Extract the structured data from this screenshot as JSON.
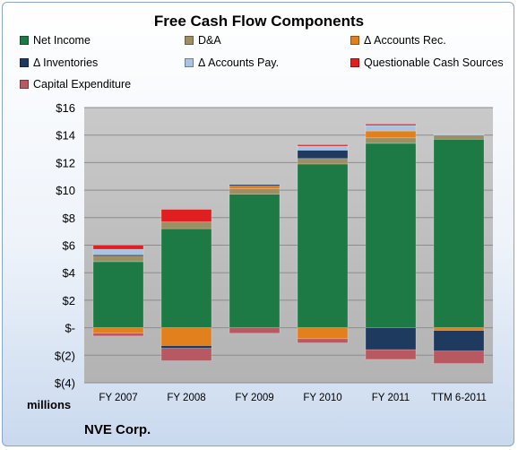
{
  "chart_data": {
    "type": "bar",
    "stacked": true,
    "title": "Free Cash Flow Components",
    "categories": [
      "FY 2007",
      "FY 2008",
      "FY 2009",
      "FY 2010",
      "FY 2011",
      "TTM 6-2011"
    ],
    "y_tick_labels": [
      "$(4)",
      "$(2)",
      "$-",
      "$2",
      "$4",
      "$6",
      "$8",
      "$10",
      "$12",
      "$14",
      "$16"
    ],
    "ylim": [
      -4,
      16
    ],
    "ylabel": "millions",
    "grid": true,
    "legend_position": "top",
    "series": [
      {
        "name": "Net Income",
        "color": "#1d7a45",
        "values": [
          4.8,
          7.2,
          9.7,
          11.9,
          13.4,
          13.7
        ]
      },
      {
        "name": "D&A",
        "color": "#9c8f63",
        "values": [
          0.4,
          0.5,
          0.4,
          0.4,
          0.4,
          0.3
        ]
      },
      {
        "name": "Δ Accounts Rec.",
        "color": "#e1801d",
        "values": [
          -0.4,
          -1.3,
          0.2,
          -0.8,
          0.5,
          -0.2
        ]
      },
      {
        "name": "Δ Inventories",
        "color": "#1f3a5f",
        "values": [
          0.1,
          -0.2,
          0.1,
          0.6,
          -1.6,
          -1.5
        ]
      },
      {
        "name": "Δ Accounts Pay.",
        "color": "#a9c3e3",
        "values": [
          0.4,
          0.0,
          0.0,
          0.3,
          0.4,
          0.1
        ]
      },
      {
        "name": "Questionable Cash Sources",
        "color": "#e02020",
        "values": [
          0.3,
          0.9,
          0.0,
          0.1,
          0.1,
          0.0
        ]
      },
      {
        "name": "Capital Expenditure",
        "color": "#b85860",
        "values": [
          -0.2,
          -0.9,
          -0.4,
          -0.3,
          -0.7,
          -0.9
        ]
      }
    ]
  },
  "footer": {
    "company": "NVE Corp."
  }
}
